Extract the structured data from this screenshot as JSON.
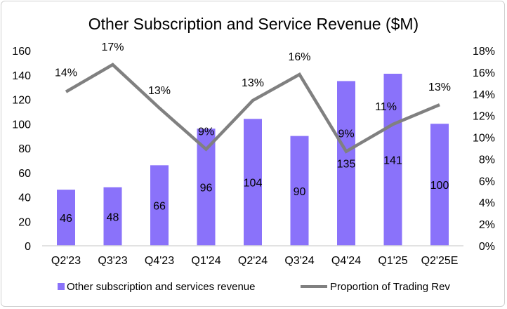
{
  "chart_data": {
    "type": "bar+line",
    "title": "Other Subscription and Service Revenue ($M)",
    "categories": [
      "Q2'23",
      "Q3'23",
      "Q4'23",
      "Q1'24",
      "Q2'24",
      "Q3'24",
      "Q4'24",
      "Q1'25",
      "Q2'25E"
    ],
    "series": [
      {
        "name": "Other subscription and services revenue",
        "type": "bar",
        "axis": "left",
        "values": [
          46,
          48,
          66,
          96,
          104,
          90,
          135,
          141,
          100
        ],
        "labels": [
          "46",
          "48",
          "66",
          "96",
          "104",
          "90",
          "135",
          "141",
          "100"
        ]
      },
      {
        "name": "Proportion of Trading Rev",
        "type": "line",
        "axis": "right",
        "values": [
          14.2,
          16.7,
          12.7,
          8.9,
          13.4,
          15.8,
          8.7,
          11.2,
          13.0
        ],
        "labels": [
          "14%",
          "17%",
          "13%",
          "9%",
          "13%",
          "16%",
          "9%",
          "11%",
          "13%"
        ]
      }
    ],
    "left_axis": {
      "ylim": [
        0,
        160
      ],
      "ticks": [
        "0",
        "20",
        "40",
        "60",
        "80",
        "100",
        "120",
        "140",
        "160"
      ]
    },
    "right_axis": {
      "ylim": [
        0,
        18
      ],
      "ticks": [
        "0%",
        "2%",
        "4%",
        "6%",
        "8%",
        "10%",
        "12%",
        "14%",
        "16%",
        "18%"
      ]
    },
    "legend": "bottom",
    "grid": false,
    "colors": {
      "bar": "#8a72fa",
      "line": "#808080",
      "axis": "#d9d9d9"
    }
  }
}
